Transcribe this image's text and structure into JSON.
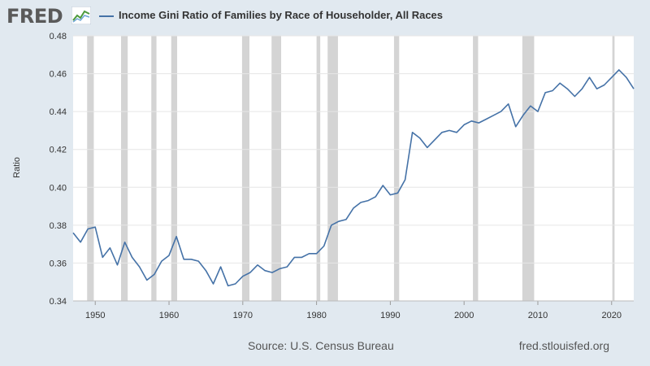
{
  "brand": {
    "logo_text": "FRED",
    "logo_icon": "fred-chart-icon"
  },
  "chart_data": {
    "type": "line",
    "title": "Income Gini Ratio of Families by Race of Householder, All Races",
    "ylabel": "Ratio",
    "xlabel": "",
    "xlim": [
      1947,
      2023
    ],
    "ylim": [
      0.34,
      0.48
    ],
    "yticks": [
      0.34,
      0.36,
      0.38,
      0.4,
      0.42,
      0.44,
      0.46,
      0.48
    ],
    "ytick_labels": [
      "0.34",
      "0.36",
      "0.38",
      "0.40",
      "0.42",
      "0.44",
      "0.46",
      "0.48"
    ],
    "xticks": [
      1950,
      1960,
      1970,
      1980,
      1990,
      2000,
      2010,
      2020
    ],
    "xtick_labels": [
      "1950",
      "1960",
      "1970",
      "1980",
      "1990",
      "2000",
      "2010",
      "2020"
    ],
    "grid": "horizontal",
    "legend": "top-left",
    "series": [
      {
        "name": "Income Gini Ratio of Families by Race of Householder, All Races",
        "color": "#4572a7",
        "x": [
          1947,
          1948,
          1949,
          1950,
          1951,
          1952,
          1953,
          1954,
          1955,
          1956,
          1957,
          1958,
          1959,
          1960,
          1961,
          1962,
          1963,
          1964,
          1965,
          1966,
          1967,
          1968,
          1969,
          1970,
          1971,
          1972,
          1973,
          1974,
          1975,
          1976,
          1977,
          1978,
          1979,
          1980,
          1981,
          1982,
          1983,
          1984,
          1985,
          1986,
          1987,
          1988,
          1989,
          1990,
          1991,
          1992,
          1993,
          1994,
          1995,
          1996,
          1997,
          1998,
          1999,
          2000,
          2001,
          2002,
          2003,
          2004,
          2005,
          2006,
          2007,
          2008,
          2009,
          2010,
          2011,
          2012,
          2013,
          2014,
          2015,
          2016,
          2017,
          2018,
          2019,
          2020,
          2021,
          2022,
          2023
        ],
        "values": [
          0.376,
          0.371,
          0.378,
          0.379,
          0.363,
          0.368,
          0.359,
          0.371,
          0.363,
          0.358,
          0.351,
          0.354,
          0.361,
          0.364,
          0.374,
          0.362,
          0.362,
          0.361,
          0.356,
          0.349,
          0.358,
          0.348,
          0.349,
          0.353,
          0.355,
          0.359,
          0.356,
          0.355,
          0.357,
          0.358,
          0.363,
          0.363,
          0.365,
          0.365,
          0.369,
          0.38,
          0.382,
          0.383,
          0.389,
          0.392,
          0.393,
          0.395,
          0.401,
          0.396,
          0.397,
          0.404,
          0.429,
          0.426,
          0.421,
          0.425,
          0.429,
          0.43,
          0.429,
          0.433,
          0.435,
          0.434,
          0.436,
          0.438,
          0.44,
          0.444,
          0.432,
          0.438,
          0.443,
          0.44,
          0.45,
          0.451,
          0.455,
          0.452,
          0.448,
          0.452,
          0.458,
          0.452,
          0.454,
          0.458,
          0.462,
          0.458,
          0.452
        ]
      }
    ],
    "recessions": [
      [
        1948.9,
        1949.8
      ],
      [
        1953.5,
        1954.4
      ],
      [
        1957.6,
        1958.3
      ],
      [
        1960.3,
        1961.1
      ],
      [
        1969.9,
        1970.9
      ],
      [
        1973.9,
        1975.2
      ],
      [
        1980.0,
        1980.5
      ],
      [
        1981.5,
        1982.9
      ],
      [
        1990.5,
        1991.2
      ],
      [
        2001.2,
        2001.9
      ],
      [
        2007.9,
        2009.5
      ],
      [
        2020.1,
        2020.4
      ]
    ],
    "colors": {
      "line": "#4572a7",
      "recession": "#d4d4d4",
      "plot_bg": "#ffffff",
      "page_bg": "#e1e9f0",
      "grid": "#e6e6e6"
    }
  },
  "footer": {
    "source": "Source: U.S. Census Bureau",
    "url": "fred.stlouisfed.org"
  }
}
